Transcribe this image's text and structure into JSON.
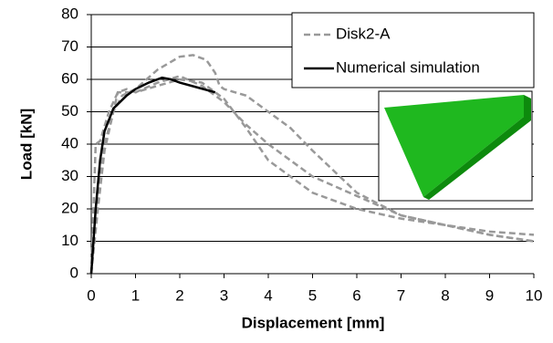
{
  "chart_data": {
    "type": "line",
    "x_label": "Displacement [mm]",
    "y_label": "Load [kN]",
    "xlim": [
      0,
      10
    ],
    "xticks": [
      0,
      1,
      2,
      3,
      4,
      5,
      6,
      7,
      8,
      9,
      10
    ],
    "ylim": [
      0,
      80
    ],
    "yticks": [
      0,
      10,
      20,
      30,
      40,
      50,
      60,
      70,
      80
    ],
    "grid": true,
    "legend": "top-right",
    "series": [
      {
        "name": "Disk2-A",
        "color": "#999999",
        "dashed": true,
        "x": [
          0,
          0.1,
          0.2,
          0.3,
          0.5,
          0.7,
          1,
          1.5,
          2,
          2.3,
          2.6,
          2.8,
          2.9,
          3,
          3.5,
          4,
          4.5,
          5,
          6,
          7,
          8,
          9,
          10
        ],
        "values": [
          0,
          15,
          30,
          40,
          50,
          55,
          57,
          63,
          67,
          67.5,
          66,
          62,
          58,
          57,
          55,
          50,
          45,
          38,
          25,
          18,
          15,
          12,
          10
        ]
      },
      {
        "color": "#999999",
        "dashed": true,
        "x": [
          0,
          0.15,
          0.3,
          0.5,
          0.6,
          1,
          1.5,
          2,
          2.5,
          3,
          3.5,
          4,
          4.5,
          5,
          6,
          7,
          8,
          9,
          10
        ],
        "values": [
          0,
          20,
          38,
          50,
          56,
          56,
          59,
          61,
          58,
          53,
          46,
          40,
          35,
          30,
          24,
          18,
          15,
          13,
          12
        ]
      },
      {
        "color": "#999999",
        "dashed": true,
        "x": [
          0,
          0.1,
          0.2,
          0.4,
          0.6,
          0.8,
          1,
          1.5,
          2,
          2.5,
          3,
          3.5,
          4,
          5,
          6,
          7,
          8,
          9,
          10
        ],
        "values": [
          0,
          40,
          41,
          50,
          56,
          57,
          56,
          58,
          60,
          59,
          54,
          45,
          35,
          25,
          20,
          17,
          15,
          12,
          10
        ]
      },
      {
        "name": "Numerical simulation",
        "color": "#000000",
        "dashed": false,
        "x": [
          0,
          0.1,
          0.2,
          0.3,
          0.5,
          0.8,
          1,
          1.3,
          1.6,
          1.8,
          2,
          2.4,
          2.8
        ],
        "values": [
          0,
          20,
          35,
          44,
          51,
          55,
          57,
          59,
          60.5,
          60,
          59,
          57.5,
          56
        ]
      }
    ]
  }
}
